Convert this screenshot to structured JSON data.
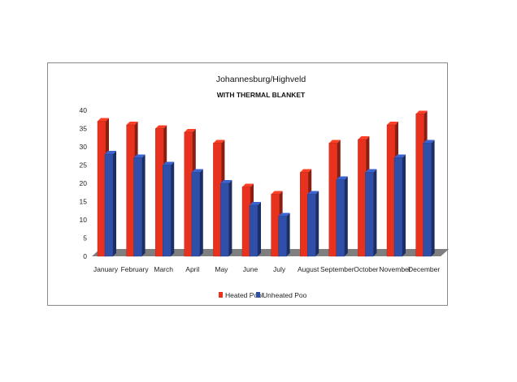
{
  "chart_data": {
    "type": "bar",
    "title": "Johannesburg/Highveld",
    "subtitle": "WITH THERMAL BLANKET",
    "xlabel": "",
    "ylabel": "",
    "ylim": [
      0,
      40
    ],
    "yticks": [
      0,
      5,
      10,
      15,
      20,
      25,
      30,
      35,
      40
    ],
    "grid": false,
    "legend_position": "bottom",
    "categories": [
      "January",
      "February",
      "March",
      "April",
      "May",
      "June",
      "July",
      "August",
      "September",
      "October",
      "November",
      "December"
    ],
    "series": [
      {
        "name": "Heated Pool",
        "color": "#e8321e",
        "values": [
          37,
          36,
          35,
          34,
          31,
          19,
          17,
          23,
          31,
          32,
          36,
          39
        ]
      },
      {
        "name": "Unheated Poo",
        "color": "#2f4fa8",
        "values": [
          28,
          27,
          25,
          23,
          20,
          14,
          11,
          17,
          21,
          23,
          27,
          31
        ]
      }
    ]
  }
}
